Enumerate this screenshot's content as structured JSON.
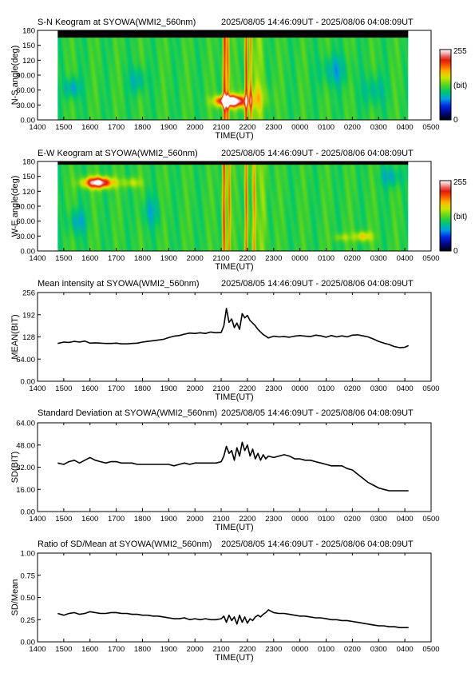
{
  "figure": {
    "time_ticks": [
      "1400",
      "1500",
      "1600",
      "1700",
      "1800",
      "1900",
      "2000",
      "2100",
      "2200",
      "2300",
      "0000",
      "0100",
      "0200",
      "0300",
      "0400",
      "0500"
    ],
    "xlabel": "TIME(UT)"
  },
  "chart_data": [
    {
      "type": "heatmap",
      "title": "S-N Keogram at SYOWA(WMI2_560nm)",
      "period": "2025/08/05 14:46:09UT - 2025/08/06 04:08:09UT",
      "ylabel": "N-S angle(deg)",
      "xlabel": "TIME(UT)",
      "xlim": [
        14.0,
        29.0
      ],
      "data_range_hours": [
        14.77,
        28.14
      ],
      "ylim": [
        0,
        180
      ],
      "yticks": [
        "0.00",
        "30.00",
        "60.00",
        "90.00",
        "120",
        "150",
        "180"
      ],
      "colorbar": {
        "min_label": "0",
        "max_label": "255",
        "unit_label": "(bit)"
      },
      "background_level": 0.45,
      "missing_band_deg": [
        167,
        180
      ],
      "blobs": [
        {
          "t": 21.4,
          "deg": 38,
          "ts": 0.55,
          "ds": 12,
          "amp": 0.58
        },
        {
          "t": 21.2,
          "deg": 40,
          "ts": 0.35,
          "ds": 8,
          "amp": 0.25
        },
        {
          "t": 22.3,
          "deg": 45,
          "ts": 0.5,
          "ds": 25,
          "amp": 0.12
        }
      ],
      "streaks": [
        {
          "t": 21.12,
          "w": 0.07,
          "amp": 0.4
        },
        {
          "t": 21.25,
          "w": 0.05,
          "amp": 0.3
        },
        {
          "t": 21.95,
          "w": 0.06,
          "amp": 0.4
        },
        {
          "t": 22.12,
          "w": 0.05,
          "amp": 0.28
        },
        {
          "t": 22.45,
          "w": 0.2,
          "amp": 0.08
        }
      ],
      "dark_patches": [
        {
          "t": 15.3,
          "deg": 65,
          "ts": 0.3,
          "ds": 20,
          "amp": 0.15
        },
        {
          "t": 17.8,
          "deg": 80,
          "ts": 0.3,
          "ds": 25,
          "amp": 0.12
        },
        {
          "t": 25.3,
          "deg": 100,
          "ts": 0.5,
          "ds": 30,
          "amp": 0.12
        },
        {
          "t": 26.8,
          "deg": 60,
          "ts": 0.4,
          "ds": 30,
          "amp": 0.1
        }
      ]
    },
    {
      "type": "heatmap",
      "title": "E-W Keogram at SYOWA(WMI2_560nm)",
      "period": "2025/08/05 14:46:09UT - 2025/08/06 04:08:09UT",
      "ylabel": "W-E angle(deg)",
      "xlabel": "TIME(UT)",
      "xlim": [
        14.0,
        29.0
      ],
      "data_range_hours": [
        14.77,
        28.14
      ],
      "ylim": [
        0,
        180
      ],
      "yticks": [
        "0.00",
        "30.00",
        "60.00",
        "90.00",
        "120",
        "150",
        "180"
      ],
      "colorbar": {
        "min_label": "0",
        "max_label": "255",
        "unit_label": "(bit)"
      },
      "background_level": 0.45,
      "missing_band_deg": [
        174,
        180
      ],
      "blobs": [
        {
          "t": 16.3,
          "deg": 138,
          "ts": 0.55,
          "ds": 11,
          "amp": 0.58
        },
        {
          "t": 17.6,
          "deg": 138,
          "ts": 0.35,
          "ds": 10,
          "amp": 0.15
        },
        {
          "t": 26.4,
          "deg": 30,
          "ts": 0.35,
          "ds": 10,
          "amp": 0.22
        },
        {
          "t": 25.6,
          "deg": 28,
          "ts": 0.3,
          "ds": 8,
          "amp": 0.12
        }
      ],
      "streaks": [
        {
          "t": 21.1,
          "w": 0.07,
          "amp": 0.38
        },
        {
          "t": 21.3,
          "w": 0.05,
          "amp": 0.3
        },
        {
          "t": 21.95,
          "w": 0.06,
          "amp": 0.36
        },
        {
          "t": 22.25,
          "w": 0.06,
          "amp": 0.26
        },
        {
          "t": 22.6,
          "w": 0.15,
          "amp": 0.1
        }
      ],
      "dark_patches": [
        {
          "t": 15.5,
          "deg": 60,
          "ts": 0.35,
          "ds": 25,
          "amp": 0.12
        },
        {
          "t": 18.3,
          "deg": 80,
          "ts": 0.35,
          "ds": 30,
          "amp": 0.1
        },
        {
          "t": 27.5,
          "deg": 150,
          "ts": 0.4,
          "ds": 20,
          "amp": 0.12
        }
      ]
    },
    {
      "type": "line",
      "title": "Mean intensity at SYOWA(WMI2_560nm)",
      "period": "2025/08/05 14:46:09UT - 2025/08/06 04:08:09UT",
      "ylabel": "MEAN(BIT)",
      "xlabel": "TIME(UT)",
      "xlim": [
        14.0,
        29.0
      ],
      "ylim": [
        0,
        256
      ],
      "yticks": [
        "0.00",
        "64.00",
        "128",
        "192",
        "256"
      ],
      "series": [
        {
          "x": [
            14.77,
            15.0,
            15.2,
            15.4,
            15.6,
            15.8,
            16.0,
            16.2,
            16.4,
            16.6,
            16.8,
            17.0,
            17.2,
            17.4,
            17.6,
            17.8,
            18.0,
            18.2,
            18.4,
            18.6,
            18.8,
            19.0,
            19.2,
            19.4,
            19.6,
            19.8,
            20.0,
            20.2,
            20.4,
            20.6,
            20.8,
            21.0,
            21.1,
            21.2,
            21.3,
            21.4,
            21.5,
            21.6,
            21.7,
            21.8,
            21.9,
            22.0,
            22.1,
            22.2,
            22.3,
            22.4,
            22.5,
            22.6,
            22.7,
            22.8,
            23.0,
            23.2,
            23.4,
            23.6,
            23.8,
            24.0,
            24.2,
            24.4,
            24.6,
            24.8,
            25.0,
            25.2,
            25.4,
            25.6,
            25.8,
            26.0,
            26.2,
            26.4,
            26.6,
            26.8,
            27.0,
            27.2,
            27.4,
            27.6,
            27.8,
            28.0,
            28.14
          ],
          "y": [
            109,
            113,
            112,
            115,
            113,
            116,
            110,
            111,
            110,
            109,
            109,
            110,
            108,
            108,
            109,
            110,
            113,
            115,
            117,
            119,
            121,
            126,
            130,
            132,
            136,
            139,
            138,
            140,
            138,
            142,
            140,
            141,
            160,
            210,
            170,
            180,
            155,
            168,
            150,
            195,
            183,
            190,
            175,
            168,
            160,
            150,
            142,
            135,
            130,
            125,
            130,
            128,
            129,
            127,
            130,
            132,
            130,
            129,
            133,
            131,
            127,
            132,
            128,
            131,
            128,
            133,
            134,
            131,
            128,
            122,
            115,
            110,
            106,
            100,
            97,
            98,
            103
          ]
        }
      ]
    },
    {
      "type": "line",
      "title": "Standard Deviation at SYOWA(WMI2_560nm)",
      "period": "2025/08/05 14:46:09UT - 2025/08/06 04:08:09UT",
      "ylabel": "SD(BIT)",
      "xlabel": "TIME(UT)",
      "xlim": [
        14.0,
        29.0
      ],
      "ylim": [
        0,
        64
      ],
      "yticks": [
        "0.00",
        "16.00",
        "32.00",
        "48.00",
        "64.00"
      ],
      "series": [
        {
          "x": [
            14.77,
            15.0,
            15.2,
            15.4,
            15.6,
            15.8,
            16.0,
            16.2,
            16.4,
            16.6,
            16.8,
            17.0,
            17.2,
            17.4,
            17.6,
            17.8,
            18.0,
            18.2,
            18.4,
            18.6,
            18.8,
            19.0,
            19.2,
            19.4,
            19.6,
            19.8,
            20.0,
            20.2,
            20.4,
            20.6,
            20.8,
            21.0,
            21.1,
            21.2,
            21.3,
            21.4,
            21.5,
            21.6,
            21.7,
            21.8,
            21.9,
            22.0,
            22.1,
            22.2,
            22.3,
            22.4,
            22.5,
            22.6,
            22.7,
            22.8,
            23.0,
            23.2,
            23.4,
            23.6,
            23.8,
            24.0,
            24.2,
            24.4,
            24.6,
            24.8,
            25.0,
            25.2,
            25.4,
            25.6,
            25.8,
            26.0,
            26.2,
            26.4,
            26.6,
            26.8,
            27.0,
            27.2,
            27.4,
            27.6,
            27.8,
            28.0,
            28.14
          ],
          "y": [
            35,
            34,
            36,
            37,
            35,
            37,
            39,
            37,
            36,
            35,
            36,
            36,
            35,
            35,
            35,
            34,
            34,
            34,
            34,
            34,
            34,
            34,
            33,
            34,
            35,
            34,
            35,
            35,
            35,
            35,
            35,
            36,
            40,
            47,
            42,
            44,
            37,
            46,
            40,
            50,
            44,
            48,
            40,
            45,
            38,
            42,
            37,
            41,
            38,
            40,
            39,
            40,
            41,
            40,
            38,
            38,
            37,
            37,
            36,
            35,
            34,
            33,
            33,
            33,
            31,
            30,
            27,
            24,
            21,
            19,
            17,
            16,
            15,
            15,
            15,
            15,
            15
          ]
        }
      ]
    },
    {
      "type": "line",
      "title": "Ratio of SD/Mean at SYOWA(WMI2_560nm)",
      "period": "2025/08/05 14:46:09UT - 2025/08/06 04:08:09UT",
      "ylabel": "SD/Mean",
      "xlabel": "TIME(UT)",
      "xlim": [
        14.0,
        29.0
      ],
      "ylim": [
        0,
        1
      ],
      "yticks": [
        "0.00",
        "0.25",
        "0.50",
        "0.75",
        "1.00"
      ],
      "series": [
        {
          "x": [
            14.77,
            15.0,
            15.2,
            15.4,
            15.6,
            15.8,
            16.0,
            16.2,
            16.4,
            16.6,
            16.8,
            17.0,
            17.2,
            17.4,
            17.6,
            17.8,
            18.0,
            18.2,
            18.4,
            18.6,
            18.8,
            19.0,
            19.2,
            19.4,
            19.6,
            19.8,
            20.0,
            20.2,
            20.4,
            20.6,
            20.8,
            21.0,
            21.1,
            21.2,
            21.3,
            21.4,
            21.5,
            21.6,
            21.7,
            21.8,
            21.9,
            22.0,
            22.1,
            22.2,
            22.3,
            22.4,
            22.5,
            22.6,
            22.7,
            22.8,
            23.0,
            23.2,
            23.4,
            23.6,
            23.8,
            24.0,
            24.2,
            24.4,
            24.6,
            24.8,
            25.0,
            25.2,
            25.4,
            25.6,
            25.8,
            26.0,
            26.2,
            26.4,
            26.6,
            26.8,
            27.0,
            27.2,
            27.4,
            27.6,
            27.8,
            28.0,
            28.14
          ],
          "y": [
            0.32,
            0.3,
            0.32,
            0.33,
            0.31,
            0.32,
            0.34,
            0.33,
            0.32,
            0.32,
            0.33,
            0.33,
            0.32,
            0.32,
            0.31,
            0.31,
            0.3,
            0.3,
            0.29,
            0.29,
            0.28,
            0.27,
            0.26,
            0.26,
            0.27,
            0.25,
            0.26,
            0.25,
            0.26,
            0.25,
            0.25,
            0.26,
            0.29,
            0.22,
            0.3,
            0.24,
            0.28,
            0.2,
            0.3,
            0.22,
            0.28,
            0.21,
            0.26,
            0.24,
            0.28,
            0.3,
            0.28,
            0.31,
            0.33,
            0.36,
            0.33,
            0.32,
            0.32,
            0.31,
            0.3,
            0.29,
            0.29,
            0.28,
            0.27,
            0.27,
            0.26,
            0.25,
            0.25,
            0.24,
            0.24,
            0.23,
            0.22,
            0.21,
            0.2,
            0.19,
            0.18,
            0.18,
            0.17,
            0.17,
            0.16,
            0.16,
            0.16
          ]
        }
      ]
    }
  ]
}
